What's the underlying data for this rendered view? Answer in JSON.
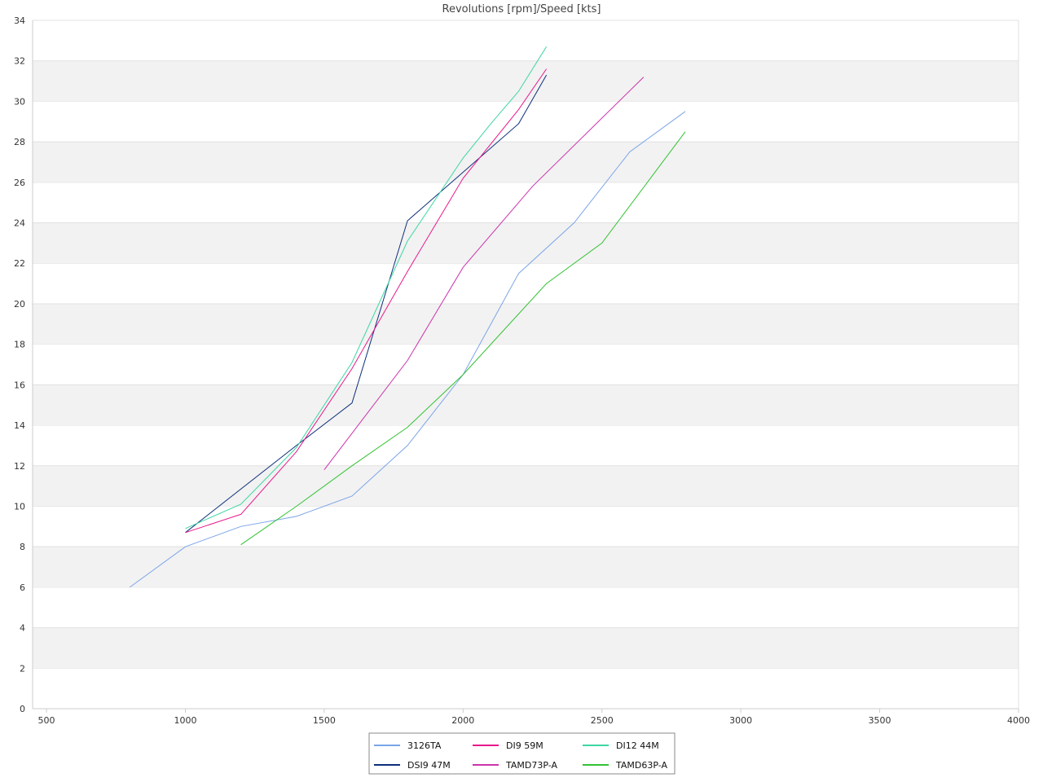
{
  "chart_data": {
    "type": "line",
    "title": "Revolutions [rpm]/Speed [kts]",
    "xlabel": "",
    "ylabel": "",
    "xlim": [
      500,
      4000
    ],
    "ylim": [
      0,
      34
    ],
    "x_ticks": [
      500,
      1000,
      1500,
      2000,
      2500,
      3000,
      3500,
      4000
    ],
    "y_ticks": [
      0,
      2,
      4,
      6,
      8,
      10,
      12,
      14,
      16,
      18,
      20,
      22,
      24,
      26,
      28,
      30,
      32,
      34
    ],
    "grid": "horizontal alternating bands",
    "band_color": "#f2f2f2",
    "legend_position": "bottom-center",
    "series": [
      {
        "name": "3126TA",
        "color": "#7ba4e8",
        "points": [
          [
            800,
            6.0
          ],
          [
            1000,
            8.0
          ],
          [
            1200,
            9.0
          ],
          [
            1400,
            9.5
          ],
          [
            1600,
            10.5
          ],
          [
            1800,
            13.0
          ],
          [
            2000,
            16.5
          ],
          [
            2200,
            21.5
          ],
          [
            2400,
            24.0
          ],
          [
            2600,
            27.5
          ],
          [
            2800,
            29.5
          ]
        ]
      },
      {
        "name": "DSI9 47M",
        "color": "#0d2f7a",
        "points": [
          [
            1000,
            8.7
          ],
          [
            1400,
            13.0
          ],
          [
            1600,
            15.1
          ],
          [
            1800,
            24.1
          ],
          [
            2200,
            28.9
          ],
          [
            2300,
            31.3
          ]
        ]
      },
      {
        "name": "DI9 59M",
        "color": "#e8188c",
        "points": [
          [
            1000,
            8.7
          ],
          [
            1200,
            9.6
          ],
          [
            1400,
            12.7
          ],
          [
            1600,
            16.8
          ],
          [
            1800,
            21.6
          ],
          [
            2000,
            26.2
          ],
          [
            2200,
            29.6
          ],
          [
            2300,
            31.6
          ]
        ]
      },
      {
        "name": "TAMD73P-A",
        "color": "#cc33aa",
        "points": [
          [
            1500,
            11.8
          ],
          [
            1800,
            17.2
          ],
          [
            2000,
            21.8
          ],
          [
            2250,
            25.8
          ],
          [
            2650,
            31.2
          ]
        ]
      },
      {
        "name": "DI12 44M",
        "color": "#3dd6a3",
        "points": [
          [
            1000,
            8.9
          ],
          [
            1200,
            10.1
          ],
          [
            1400,
            12.9
          ],
          [
            1600,
            17.1
          ],
          [
            1800,
            23.1
          ],
          [
            2000,
            27.2
          ],
          [
            2100,
            28.9
          ],
          [
            2200,
            30.5
          ],
          [
            2300,
            32.7
          ]
        ]
      },
      {
        "name": "TAMD63P-A",
        "color": "#33c233",
        "points": [
          [
            1200,
            8.1
          ],
          [
            1400,
            10.0
          ],
          [
            1600,
            12.0
          ],
          [
            1800,
            13.9
          ],
          [
            2000,
            16.5
          ],
          [
            2300,
            21.0
          ],
          [
            2500,
            23.0
          ],
          [
            2800,
            28.5
          ]
        ]
      }
    ]
  }
}
